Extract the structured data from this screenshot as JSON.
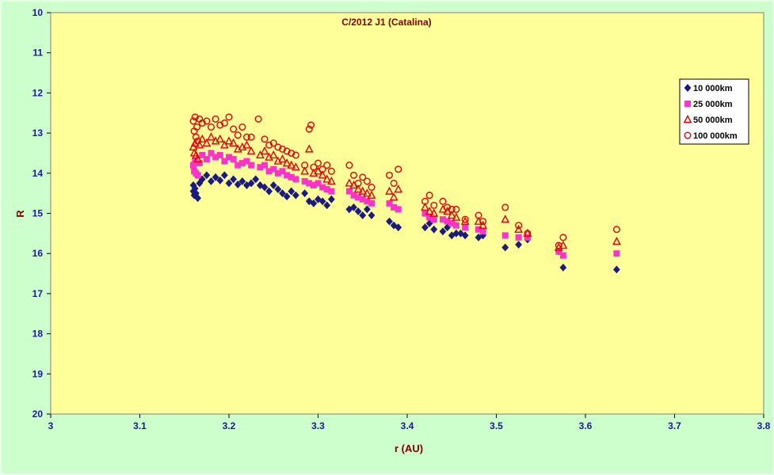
{
  "chart_data": {
    "type": "scatter",
    "title": "C/2012 J1 (Catalina)",
    "xlabel": "r (AU)",
    "ylabel": "R",
    "xlim": [
      3,
      3.8
    ],
    "ylim": [
      10,
      20
    ],
    "y_inverted": true,
    "x_ticks": [
      "3",
      "3.1",
      "3.2",
      "3.3",
      "3.4",
      "3.5",
      "3.6",
      "3.7",
      "3.8"
    ],
    "y_ticks": [
      "10",
      "11",
      "12",
      "13",
      "14",
      "15",
      "16",
      "17",
      "18",
      "19",
      "20"
    ],
    "grid": false,
    "legend_position": "right",
    "colors": {
      "page_background": "#ccffcc",
      "plot_background": "#ffff99",
      "title": "#800000",
      "tick_labels": "#1a1a99"
    },
    "series": [
      {
        "name": "10 000km",
        "marker": "diamond",
        "color": "#1a1a80",
        "points": [
          [
            3.16,
            14.3
          ],
          [
            3.16,
            14.45
          ],
          [
            3.161,
            14.55
          ],
          [
            3.162,
            14.38
          ],
          [
            3.163,
            14.5
          ],
          [
            3.165,
            14.62
          ],
          [
            3.167,
            14.25
          ],
          [
            3.17,
            14.15
          ],
          [
            3.175,
            14.05
          ],
          [
            3.18,
            14.2
          ],
          [
            3.185,
            14.1
          ],
          [
            3.19,
            14.18
          ],
          [
            3.195,
            14.05
          ],
          [
            3.2,
            14.25
          ],
          [
            3.205,
            14.15
          ],
          [
            3.21,
            14.28
          ],
          [
            3.215,
            14.2
          ],
          [
            3.22,
            14.3
          ],
          [
            3.225,
            14.25
          ],
          [
            3.23,
            14.15
          ],
          [
            3.235,
            14.3
          ],
          [
            3.24,
            14.35
          ],
          [
            3.245,
            14.45
          ],
          [
            3.25,
            14.3
          ],
          [
            3.255,
            14.4
          ],
          [
            3.26,
            14.5
          ],
          [
            3.265,
            14.58
          ],
          [
            3.27,
            14.45
          ],
          [
            3.275,
            14.55
          ],
          [
            3.285,
            14.5
          ],
          [
            3.29,
            14.7
          ],
          [
            3.295,
            14.75
          ],
          [
            3.3,
            14.65
          ],
          [
            3.305,
            14.7
          ],
          [
            3.31,
            14.8
          ],
          [
            3.315,
            14.65
          ],
          [
            3.335,
            14.9
          ],
          [
            3.34,
            14.85
          ],
          [
            3.345,
            14.95
          ],
          [
            3.35,
            15.05
          ],
          [
            3.355,
            14.9
          ],
          [
            3.36,
            15.05
          ],
          [
            3.38,
            15.2
          ],
          [
            3.385,
            15.3
          ],
          [
            3.39,
            15.35
          ],
          [
            3.42,
            15.35
          ],
          [
            3.425,
            15.25
          ],
          [
            3.43,
            15.4
          ],
          [
            3.44,
            15.45
          ],
          [
            3.445,
            15.35
          ],
          [
            3.45,
            15.55
          ],
          [
            3.455,
            15.5
          ],
          [
            3.46,
            15.5
          ],
          [
            3.465,
            15.55
          ],
          [
            3.48,
            15.6
          ],
          [
            3.485,
            15.55
          ],
          [
            3.51,
            15.85
          ],
          [
            3.525,
            15.78
          ],
          [
            3.535,
            15.65
          ],
          [
            3.57,
            15.95
          ],
          [
            3.575,
            16.35
          ],
          [
            3.635,
            16.4
          ]
        ]
      },
      {
        "name": "25 000km",
        "marker": "square",
        "color": "#ff33cc",
        "points": [
          [
            3.16,
            13.8
          ],
          [
            3.161,
            13.95
          ],
          [
            3.162,
            13.7
          ],
          [
            3.163,
            14.0
          ],
          [
            3.165,
            14.05
          ],
          [
            3.167,
            13.75
          ],
          [
            3.17,
            13.55
          ],
          [
            3.175,
            13.65
          ],
          [
            3.18,
            13.5
          ],
          [
            3.185,
            13.6
          ],
          [
            3.19,
            13.55
          ],
          [
            3.195,
            13.7
          ],
          [
            3.2,
            13.6
          ],
          [
            3.205,
            13.65
          ],
          [
            3.21,
            13.8
          ],
          [
            3.215,
            13.75
          ],
          [
            3.22,
            13.7
          ],
          [
            3.225,
            13.8
          ],
          [
            3.235,
            13.85
          ],
          [
            3.24,
            13.8
          ],
          [
            3.245,
            13.95
          ],
          [
            3.25,
            13.9
          ],
          [
            3.255,
            14.0
          ],
          [
            3.26,
            13.95
          ],
          [
            3.265,
            14.05
          ],
          [
            3.27,
            14.1
          ],
          [
            3.275,
            14.15
          ],
          [
            3.285,
            14.2
          ],
          [
            3.29,
            14.25
          ],
          [
            3.295,
            14.3
          ],
          [
            3.3,
            14.25
          ],
          [
            3.305,
            14.35
          ],
          [
            3.31,
            14.4
          ],
          [
            3.315,
            14.45
          ],
          [
            3.335,
            14.45
          ],
          [
            3.34,
            14.55
          ],
          [
            3.345,
            14.6
          ],
          [
            3.35,
            14.65
          ],
          [
            3.355,
            14.7
          ],
          [
            3.36,
            14.75
          ],
          [
            3.38,
            14.75
          ],
          [
            3.385,
            14.85
          ],
          [
            3.39,
            14.9
          ],
          [
            3.42,
            15.0
          ],
          [
            3.425,
            15.1
          ],
          [
            3.43,
            15.15
          ],
          [
            3.44,
            15.15
          ],
          [
            3.445,
            15.2
          ],
          [
            3.45,
            15.25
          ],
          [
            3.455,
            15.3
          ],
          [
            3.465,
            15.35
          ],
          [
            3.48,
            15.4
          ],
          [
            3.485,
            15.45
          ],
          [
            3.51,
            15.55
          ],
          [
            3.525,
            15.6
          ],
          [
            3.535,
            15.6
          ],
          [
            3.57,
            15.95
          ],
          [
            3.575,
            16.05
          ],
          [
            3.635,
            16.0
          ]
        ]
      },
      {
        "name": "50 000km",
        "marker": "triangle",
        "color": "#e60000",
        "points": [
          [
            3.16,
            13.35
          ],
          [
            3.161,
            13.5
          ],
          [
            3.162,
            13.25
          ],
          [
            3.163,
            13.55
          ],
          [
            3.165,
            13.65
          ],
          [
            3.167,
            13.3
          ],
          [
            3.17,
            13.15
          ],
          [
            3.175,
            13.25
          ],
          [
            3.18,
            13.1
          ],
          [
            3.185,
            13.2
          ],
          [
            3.19,
            13.15
          ],
          [
            3.195,
            13.3
          ],
          [
            3.2,
            13.2
          ],
          [
            3.205,
            13.25
          ],
          [
            3.21,
            13.4
          ],
          [
            3.215,
            13.35
          ],
          [
            3.22,
            13.3
          ],
          [
            3.225,
            13.45
          ],
          [
            3.235,
            13.55
          ],
          [
            3.24,
            13.45
          ],
          [
            3.245,
            13.6
          ],
          [
            3.25,
            13.55
          ],
          [
            3.255,
            13.7
          ],
          [
            3.26,
            13.65
          ],
          [
            3.265,
            13.75
          ],
          [
            3.27,
            13.8
          ],
          [
            3.275,
            13.85
          ],
          [
            3.285,
            13.95
          ],
          [
            3.29,
            13.4
          ],
          [
            3.295,
            14.0
          ],
          [
            3.3,
            13.95
          ],
          [
            3.305,
            14.05
          ],
          [
            3.31,
            14.15
          ],
          [
            3.315,
            14.2
          ],
          [
            3.335,
            14.25
          ],
          [
            3.34,
            14.3
          ],
          [
            3.345,
            14.4
          ],
          [
            3.35,
            14.45
          ],
          [
            3.355,
            14.5
          ],
          [
            3.36,
            14.55
          ],
          [
            3.38,
            14.45
          ],
          [
            3.385,
            14.6
          ],
          [
            3.39,
            14.4
          ],
          [
            3.42,
            14.85
          ],
          [
            3.425,
            14.95
          ],
          [
            3.43,
            15.0
          ],
          [
            3.44,
            14.9
          ],
          [
            3.445,
            14.95
          ],
          [
            3.45,
            15.05
          ],
          [
            3.455,
            15.1
          ],
          [
            3.465,
            15.2
          ],
          [
            3.48,
            15.2
          ],
          [
            3.485,
            15.3
          ],
          [
            3.51,
            15.15
          ],
          [
            3.525,
            15.4
          ],
          [
            3.535,
            15.5
          ],
          [
            3.57,
            15.85
          ],
          [
            3.575,
            15.8
          ],
          [
            3.635,
            15.7
          ]
        ]
      },
      {
        "name": "100 000km",
        "marker": "circle",
        "color": "#e60000",
        "points": [
          [
            3.16,
            12.7
          ],
          [
            3.161,
            12.95
          ],
          [
            3.162,
            12.6
          ],
          [
            3.163,
            13.1
          ],
          [
            3.164,
            12.85
          ],
          [
            3.165,
            13.2
          ],
          [
            3.167,
            12.65
          ],
          [
            3.17,
            12.75
          ],
          [
            3.175,
            12.7
          ],
          [
            3.18,
            12.85
          ],
          [
            3.185,
            12.65
          ],
          [
            3.19,
            12.8
          ],
          [
            3.195,
            12.75
          ],
          [
            3.2,
            12.6
          ],
          [
            3.205,
            12.9
          ],
          [
            3.21,
            13.05
          ],
          [
            3.215,
            12.85
          ],
          [
            3.22,
            13.1
          ],
          [
            3.225,
            13.1
          ],
          [
            3.233,
            12.65
          ],
          [
            3.24,
            13.15
          ],
          [
            3.245,
            13.3
          ],
          [
            3.25,
            13.25
          ],
          [
            3.255,
            13.35
          ],
          [
            3.26,
            13.4
          ],
          [
            3.265,
            13.45
          ],
          [
            3.27,
            13.5
          ],
          [
            3.275,
            13.55
          ],
          [
            3.285,
            13.8
          ],
          [
            3.29,
            12.9
          ],
          [
            3.292,
            12.8
          ],
          [
            3.295,
            13.85
          ],
          [
            3.3,
            13.75
          ],
          [
            3.305,
            13.9
          ],
          [
            3.31,
            13.8
          ],
          [
            3.315,
            13.95
          ],
          [
            3.335,
            13.8
          ],
          [
            3.34,
            14.05
          ],
          [
            3.345,
            14.25
          ],
          [
            3.35,
            14.1
          ],
          [
            3.355,
            14.2
          ],
          [
            3.36,
            14.35
          ],
          [
            3.38,
            14.05
          ],
          [
            3.385,
            14.25
          ],
          [
            3.39,
            13.9
          ],
          [
            3.42,
            14.7
          ],
          [
            3.425,
            14.55
          ],
          [
            3.43,
            14.8
          ],
          [
            3.44,
            14.7
          ],
          [
            3.445,
            14.85
          ],
          [
            3.45,
            14.9
          ],
          [
            3.455,
            14.9
          ],
          [
            3.465,
            15.15
          ],
          [
            3.48,
            15.05
          ],
          [
            3.485,
            15.2
          ],
          [
            3.51,
            14.85
          ],
          [
            3.525,
            15.3
          ],
          [
            3.535,
            15.5
          ],
          [
            3.57,
            15.8
          ],
          [
            3.575,
            15.6
          ],
          [
            3.635,
            15.4
          ]
        ]
      }
    ]
  }
}
